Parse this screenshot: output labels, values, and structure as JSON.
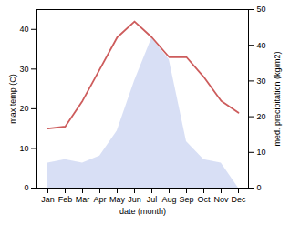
{
  "chart_data": {
    "type": "line",
    "categories": [
      "Jan",
      "Feb",
      "Mar",
      "Apr",
      "May",
      "Jun",
      "Jul",
      "Aug",
      "Sep",
      "Oct",
      "Nov",
      "Dec"
    ],
    "xlabel": "date (month)",
    "ylabel": "max temp (C)",
    "y2label": "med. precipitation (kg/m2)",
    "ylim": [
      0,
      45
    ],
    "yticks": [
      0,
      10,
      20,
      30,
      40
    ],
    "y2lim": [
      0,
      50
    ],
    "y2ticks": [
      0,
      10,
      20,
      30,
      40,
      50
    ],
    "grid": false,
    "series": [
      {
        "type": "area",
        "axis": "y2",
        "color": "#a8b8e8",
        "values": [
          7,
          8,
          7,
          9,
          16,
          30,
          42,
          36,
          13,
          8,
          7,
          0
        ]
      },
      {
        "type": "line",
        "color": "#cd5c5c",
        "values": [
          15,
          15.5,
          22,
          30,
          38,
          42,
          38,
          33,
          33,
          28,
          22,
          19
        ]
      }
    ]
  }
}
